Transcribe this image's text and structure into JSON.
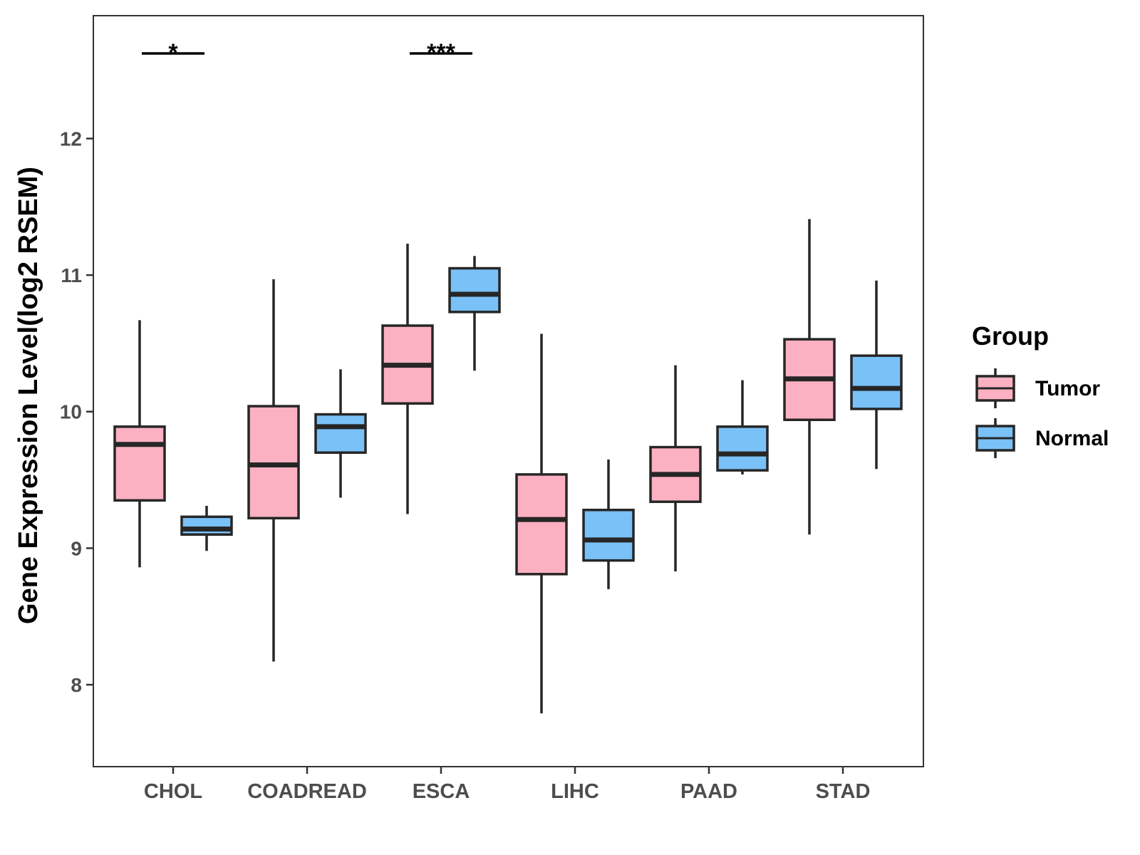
{
  "chart_data": {
    "type": "boxplot",
    "ylabel": "Gene Expression Level(log2 RSEM)",
    "xlabel": "",
    "ylim": [
      7.4,
      12.9
    ],
    "yticks": [
      8,
      9,
      10,
      11,
      12
    ],
    "grid": false,
    "legend_position": "right",
    "categories": [
      "CHOL",
      "COADREAD",
      "ESCA",
      "LIHC",
      "PAAD",
      "STAD"
    ],
    "legend": {
      "title": "Group",
      "entries": [
        {
          "name": "Tumor",
          "color": "#FBB1C2"
        },
        {
          "name": "Normal",
          "color": "#79C1F7"
        }
      ]
    },
    "series": [
      {
        "name": "Tumor",
        "color": "#FBB1C2",
        "boxes": [
          {
            "category": "CHOL",
            "min": 8.86,
            "q1": 9.35,
            "median": 9.76,
            "q3": 9.89,
            "max": 10.67
          },
          {
            "category": "COADREAD",
            "min": 8.17,
            "q1": 9.22,
            "median": 9.61,
            "q3": 10.04,
            "max": 10.97
          },
          {
            "category": "ESCA",
            "min": 9.25,
            "q1": 10.06,
            "median": 10.34,
            "q3": 10.63,
            "max": 11.23
          },
          {
            "category": "LIHC",
            "min": 7.79,
            "q1": 8.81,
            "median": 9.21,
            "q3": 9.54,
            "max": 10.57
          },
          {
            "category": "PAAD",
            "min": 8.83,
            "q1": 9.34,
            "median": 9.54,
            "q3": 9.74,
            "max": 10.34
          },
          {
            "category": "STAD",
            "min": 9.1,
            "q1": 9.94,
            "median": 10.24,
            "q3": 10.53,
            "max": 11.41
          }
        ]
      },
      {
        "name": "Normal",
        "color": "#79C1F7",
        "boxes": [
          {
            "category": "CHOL",
            "min": 8.98,
            "q1": 9.1,
            "median": 9.14,
            "q3": 9.23,
            "max": 9.31
          },
          {
            "category": "COADREAD",
            "min": 9.37,
            "q1": 9.7,
            "median": 9.89,
            "q3": 9.98,
            "max": 10.31
          },
          {
            "category": "ESCA",
            "min": 10.3,
            "q1": 10.73,
            "median": 10.86,
            "q3": 11.05,
            "max": 11.14
          },
          {
            "category": "LIHC",
            "min": 8.7,
            "q1": 8.91,
            "median": 9.06,
            "q3": 9.28,
            "max": 9.65
          },
          {
            "category": "PAAD",
            "min": 9.54,
            "q1": 9.57,
            "median": 9.69,
            "q3": 9.89,
            "max": 10.23
          },
          {
            "category": "STAD",
            "min": 9.58,
            "q1": 10.02,
            "median": 10.17,
            "q3": 10.41,
            "max": 10.96
          }
        ]
      }
    ],
    "annotations": [
      {
        "category": "CHOL",
        "label": "*"
      },
      {
        "category": "ESCA",
        "label": "***"
      }
    ]
  }
}
